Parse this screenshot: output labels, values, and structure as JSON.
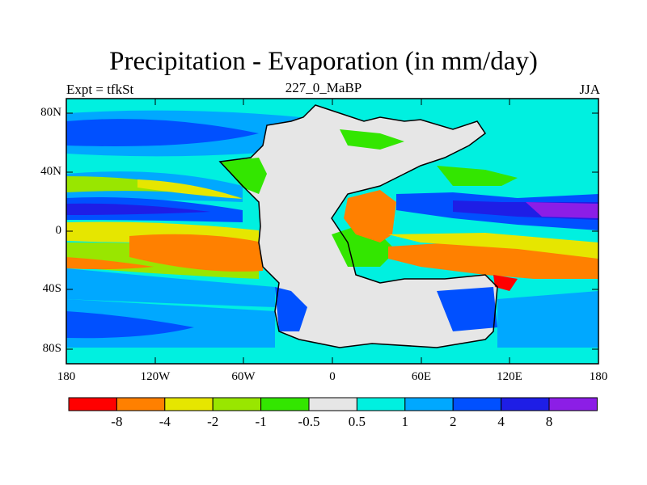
{
  "title": "Precipitation - Evaporation (in mm/day)",
  "subtitle_left": "Expt = tfkSt",
  "subtitle_center": "227_0_MaBP",
  "subtitle_right": "JJA",
  "lat_ticks": [
    "80N",
    "40N",
    "0",
    "40S",
    "80S"
  ],
  "lon_ticks": [
    "180",
    "120W",
    "60W",
    "0",
    "60E",
    "120E",
    "180"
  ],
  "colorbar": {
    "colors": [
      "#ff0000",
      "#ff8000",
      "#e6e600",
      "#99e600",
      "#33e600",
      "#e6e6e6",
      "#00f0e0",
      "#00a8ff",
      "#0050ff",
      "#1e1ee6",
      "#8c1ee6"
    ],
    "labels": [
      "-8",
      "-4",
      "-2",
      "-1",
      "-0.5",
      "0.5",
      "1",
      "2",
      "4",
      "8"
    ]
  },
  "colors": {
    "land_gray": "#e6e6e6",
    "coastline": "#000000"
  }
}
